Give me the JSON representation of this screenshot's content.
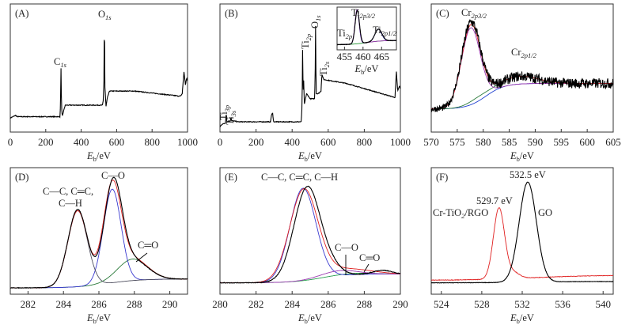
{
  "chart_data": [
    {
      "id": "A",
      "type": "line",
      "panel_label": "(A)",
      "xlabel": {
        "symbol": "E",
        "sub": "b",
        "unit": "/eV"
      },
      "xlim": [
        0,
        1000
      ],
      "ylim": [
        0,
        1
      ],
      "xticks": [
        0,
        200,
        400,
        600,
        800,
        1000
      ],
      "annotations": [
        {
          "base": "C",
          "sub": "1s"
        },
        {
          "base": "O",
          "sub": "1s"
        }
      ],
      "curves": [
        {
          "color": "#000000",
          "noise": 0.006,
          "points": [
            [
              0,
              0.11
            ],
            [
              30,
              0.13
            ],
            [
              40,
              0.12
            ],
            [
              280,
              0.12
            ],
            [
              283,
              0.2
            ],
            [
              286,
              0.5
            ],
            [
              289,
              0.2
            ],
            [
              293,
              0.12
            ],
            [
              300,
              0.16
            ],
            [
              310,
              0.21
            ],
            [
              520,
              0.21
            ],
            [
              525,
              0.25
            ],
            [
              528,
              0.4
            ],
            [
              531,
              0.88
            ],
            [
              534,
              0.35
            ],
            [
              540,
              0.2
            ],
            [
              548,
              0.27
            ],
            [
              560,
              0.32
            ],
            [
              700,
              0.32
            ],
            [
              960,
              0.28
            ],
            [
              970,
              0.3
            ],
            [
              980,
              0.47
            ],
            [
              988,
              0.37
            ],
            [
              995,
              0.42
            ],
            [
              1000,
              0.4
            ]
          ]
        }
      ]
    },
    {
      "id": "B",
      "type": "line",
      "panel_label": "(B)",
      "xlabel": {
        "symbol": "E",
        "sub": "b",
        "unit": "/eV"
      },
      "xlim": [
        0,
        1000
      ],
      "ylim": [
        0,
        1
      ],
      "xticks": [
        0,
        200,
        400,
        600,
        800,
        1000
      ],
      "annotations": [
        {
          "base": "Ti",
          "sub": "2p"
        },
        {
          "base": "O",
          "sub": "1s"
        },
        {
          "base": "Ti",
          "sub": "2s"
        },
        {
          "base": "Ti",
          "sub": "3p"
        },
        {
          "base": "Ti",
          "sub": "3s"
        }
      ],
      "curves": [
        {
          "color": "#000000",
          "noise": 0.006,
          "points": [
            [
              0,
              0.04
            ],
            [
              10,
              0.06
            ],
            [
              30,
              0.07
            ],
            [
              35,
              0.15
            ],
            [
              38,
              0.08
            ],
            [
              58,
              0.09
            ],
            [
              61,
              0.12
            ],
            [
              64,
              0.09
            ],
            [
              100,
              0.08
            ],
            [
              280,
              0.08
            ],
            [
              285,
              0.13
            ],
            [
              292,
              0.15
            ],
            [
              297,
              0.08
            ],
            [
              450,
              0.08
            ],
            [
              455,
              0.2
            ],
            [
              458,
              0.64
            ],
            [
              461,
              0.3
            ],
            [
              464,
              0.4
            ],
            [
              468,
              0.22
            ],
            [
              480,
              0.3
            ],
            [
              500,
              0.26
            ],
            [
              525,
              0.26
            ],
            [
              528,
              0.5
            ],
            [
              530,
              0.83
            ],
            [
              533,
              0.3
            ],
            [
              545,
              0.3
            ],
            [
              560,
              0.32
            ],
            [
              565,
              0.45
            ],
            [
              575,
              0.41
            ],
            [
              700,
              0.38
            ],
            [
              970,
              0.27
            ],
            [
              978,
              0.47
            ],
            [
              985,
              0.32
            ],
            [
              995,
              0.36
            ],
            [
              1000,
              0.34
            ]
          ]
        }
      ],
      "inset": {
        "xlim": [
          453,
          469
        ],
        "ylim": [
          0,
          1
        ],
        "xticks": [
          455,
          460,
          465
        ],
        "xlabel": {
          "symbol": "E",
          "sub": "b",
          "unit": "/eV"
        },
        "annotations": [
          {
            "base": "Ti",
            "sub": "2p3/2"
          },
          {
            "base": "Ti",
            "sub": "2p"
          },
          {
            "base": "Ti",
            "sub": "2p1/2"
          }
        ],
        "curves": [
          {
            "color": "#2a9a3a",
            "baseline": [
              0.12,
              0.22,
              461,
              2
            ],
            "peaks": []
          },
          {
            "color": "#3a3ad0",
            "baseline": [
              0.12,
              0.22,
              461,
              2
            ],
            "peaks": [
              [
                458.4,
                0.8,
                0.55
              ],
              [
                464.1,
                0.28,
                0.9
              ]
            ]
          },
          {
            "color": "#9a3ab0",
            "baseline": [
              0.12,
              0.22,
              461,
              2
            ],
            "peaks": [
              [
                458.4,
                0.8,
                0.57
              ]
            ]
          },
          {
            "color": "#000000",
            "baseline": [
              0.12,
              0.22,
              461,
              2
            ],
            "peaks": [
              [
                458.45,
                0.78,
                0.58
              ],
              [
                464.15,
                0.28,
                0.95
              ]
            ],
            "noise": 0.004
          }
        ]
      }
    },
    {
      "id": "C",
      "type": "line",
      "panel_label": "(C)",
      "xlabel": {
        "symbol": "E",
        "sub": "b",
        "unit": "/eV"
      },
      "xlim": [
        570,
        605
      ],
      "ylim": [
        0,
        1
      ],
      "xticks": [
        570,
        575,
        580,
        585,
        590,
        595,
        600,
        605
      ],
      "annotations": [
        {
          "base": "Cr",
          "sub": "2p3/2"
        },
        {
          "base": "Cr",
          "sub": "2p1/2"
        }
      ],
      "curves": [
        {
          "color": "#2040d0",
          "baseline": [
            0.18,
            0.38,
            580.5,
            1.8
          ],
          "peaks": []
        },
        {
          "color": "#2a7a3a",
          "baseline": [
            0.18,
            0.38,
            580.5,
            1.8
          ],
          "peaks": [
            [
              587,
              0.06,
              3.5
            ],
            [
              579,
              0.03,
              2
            ]
          ]
        },
        {
          "color": "#9a3ab0",
          "baseline": [
            0.18,
            0.38,
            580.5,
            1.8
          ],
          "peaks": [
            [
              577.6,
              0.6,
              1.8
            ]
          ]
        },
        {
          "color": "#e02020",
          "baseline": [
            0.18,
            0.38,
            580.5,
            1.8
          ],
          "peaks": [
            [
              577.6,
              0.6,
              1.8
            ],
            [
              587,
              0.06,
              3.5
            ],
            [
              579,
              0.03,
              2
            ]
          ]
        },
        {
          "color": "#000000",
          "baseline": [
            0.18,
            0.38,
            580.5,
            1.8
          ],
          "peaks": [
            [
              577.6,
              0.62,
              1.8
            ],
            [
              587,
              0.06,
              3.5
            ],
            [
              579,
              0.03,
              2
            ]
          ],
          "noise": 0.05
        }
      ]
    },
    {
      "id": "D",
      "type": "line",
      "panel_label": "(D)",
      "xlabel": {
        "symbol": "E",
        "sub": "b",
        "unit": "/eV"
      },
      "xlim": [
        281,
        291
      ],
      "ylim": [
        0,
        1
      ],
      "xticks": [
        282,
        284,
        286,
        288,
        290
      ],
      "annotations": [
        {
          "text": "C—C, C═C,"
        },
        {
          "text": "C—H"
        },
        {
          "text": "C—O"
        },
        {
          "text": "C═O"
        }
      ],
      "curves": [
        {
          "color": "#2a7a3a",
          "baseline": [
            0.05,
            0.12,
            286.5,
            0.9
          ],
          "peaks": [
            [
              287.9,
              0.17,
              0.85
            ]
          ]
        },
        {
          "color": "#3a3ad0",
          "baseline": [
            0.05,
            0.12,
            286.5,
            0.9
          ],
          "peaks": [
            [
              286.75,
              0.74,
              0.5
            ]
          ]
        },
        {
          "color": "#505060",
          "baseline": [
            0.05,
            0.12,
            286.5,
            0.9
          ],
          "peaks": [
            [
              284.8,
              0.6,
              0.55
            ]
          ]
        },
        {
          "color": "#e02020",
          "baseline": [
            0.05,
            0.12,
            286.5,
            0.9
          ],
          "peaks": [
            [
              284.8,
              0.6,
              0.55
            ],
            [
              286.75,
              0.74,
              0.5
            ],
            [
              287.9,
              0.17,
              0.85
            ]
          ]
        },
        {
          "color": "#000000",
          "baseline": [
            0.05,
            0.12,
            286.5,
            0.9
          ],
          "peaks": [
            [
              284.8,
              0.61,
              0.55
            ],
            [
              286.8,
              0.76,
              0.5
            ],
            [
              287.9,
              0.16,
              0.85
            ]
          ],
          "noise": 0.004
        }
      ]
    },
    {
      "id": "E",
      "type": "line",
      "panel_label": "(E)",
      "xlabel": {
        "symbol": "E",
        "sub": "b",
        "unit": "/eV"
      },
      "xlim": [
        280,
        290
      ],
      "ylim": [
        0,
        1
      ],
      "xticks": [
        280,
        282,
        284,
        286,
        288,
        290
      ],
      "annotations": [
        {
          "text": "C—C, C═C, C—H"
        },
        {
          "text": "C—O"
        },
        {
          "text": "C═O"
        }
      ],
      "curves": [
        {
          "color": "#2aa050",
          "baseline": [
            0.09,
            0.16,
            285.5,
            0.8
          ],
          "peaks": [
            [
              287.5,
              0.01,
              1
            ]
          ]
        },
        {
          "color": "#3a3ad0",
          "baseline": [
            0.09,
            0.16,
            285.5,
            0.8
          ],
          "peaks": [
            [
              284.6,
              0.73,
              0.72
            ]
          ]
        },
        {
          "color": "#9a3ab0",
          "baseline": [
            0.09,
            0.16,
            285.5,
            0.8
          ],
          "peaks": [
            [
              286.6,
              0.04,
              1
            ]
          ]
        },
        {
          "color": "#e02020",
          "baseline": [
            0.09,
            0.16,
            285.5,
            0.8
          ],
          "peaks": [
            [
              284.65,
              0.72,
              0.78
            ],
            [
              286.6,
              0.04,
              1
            ],
            [
              288,
              0.02,
              1
            ]
          ]
        },
        {
          "color": "#000000",
          "baseline": [
            0.09,
            0.16,
            285.5,
            0.8
          ],
          "peaks": [
            [
              284.85,
              0.74,
              0.74
            ],
            [
              286.3,
              0.05,
              0.5
            ],
            [
              289,
              0.03,
              0.5
            ]
          ],
          "noise": 0.005
        }
      ]
    },
    {
      "id": "F",
      "type": "line",
      "panel_label": "(F)",
      "xlabel": {
        "symbol": "E",
        "sub": "b",
        "unit": "/eV"
      },
      "xlim": [
        523,
        541
      ],
      "ylim": [
        0,
        1
      ],
      "xticks": [
        524,
        528,
        532,
        536,
        540
      ],
      "annotations": [
        {
          "text": "532.5 eV"
        },
        {
          "text": "529.7 eV"
        },
        {
          "base": "Cr-TiO",
          "sub": "2",
          "after": "/RGO"
        },
        {
          "text": "GO"
        }
      ],
      "series": [
        {
          "name": "Cr-TiO2/RGO",
          "peak_eV": 529.7,
          "color": "#e02020",
          "baseline": [
            0.11,
            0.15,
            533,
            3
          ],
          "peaks": [
            [
              529.7,
              0.56,
              0.55
            ],
            [
              531.1,
              0.05,
              0.6
            ]
          ],
          "noise": 0.004
        },
        {
          "name": "GO",
          "peak_eV": 532.5,
          "color": "#000000",
          "baseline": [
            0.09,
            0.1,
            532,
            2
          ],
          "peaks": [
            [
              532.55,
              0.79,
              0.85
            ]
          ],
          "noise": 0.003
        }
      ]
    }
  ]
}
